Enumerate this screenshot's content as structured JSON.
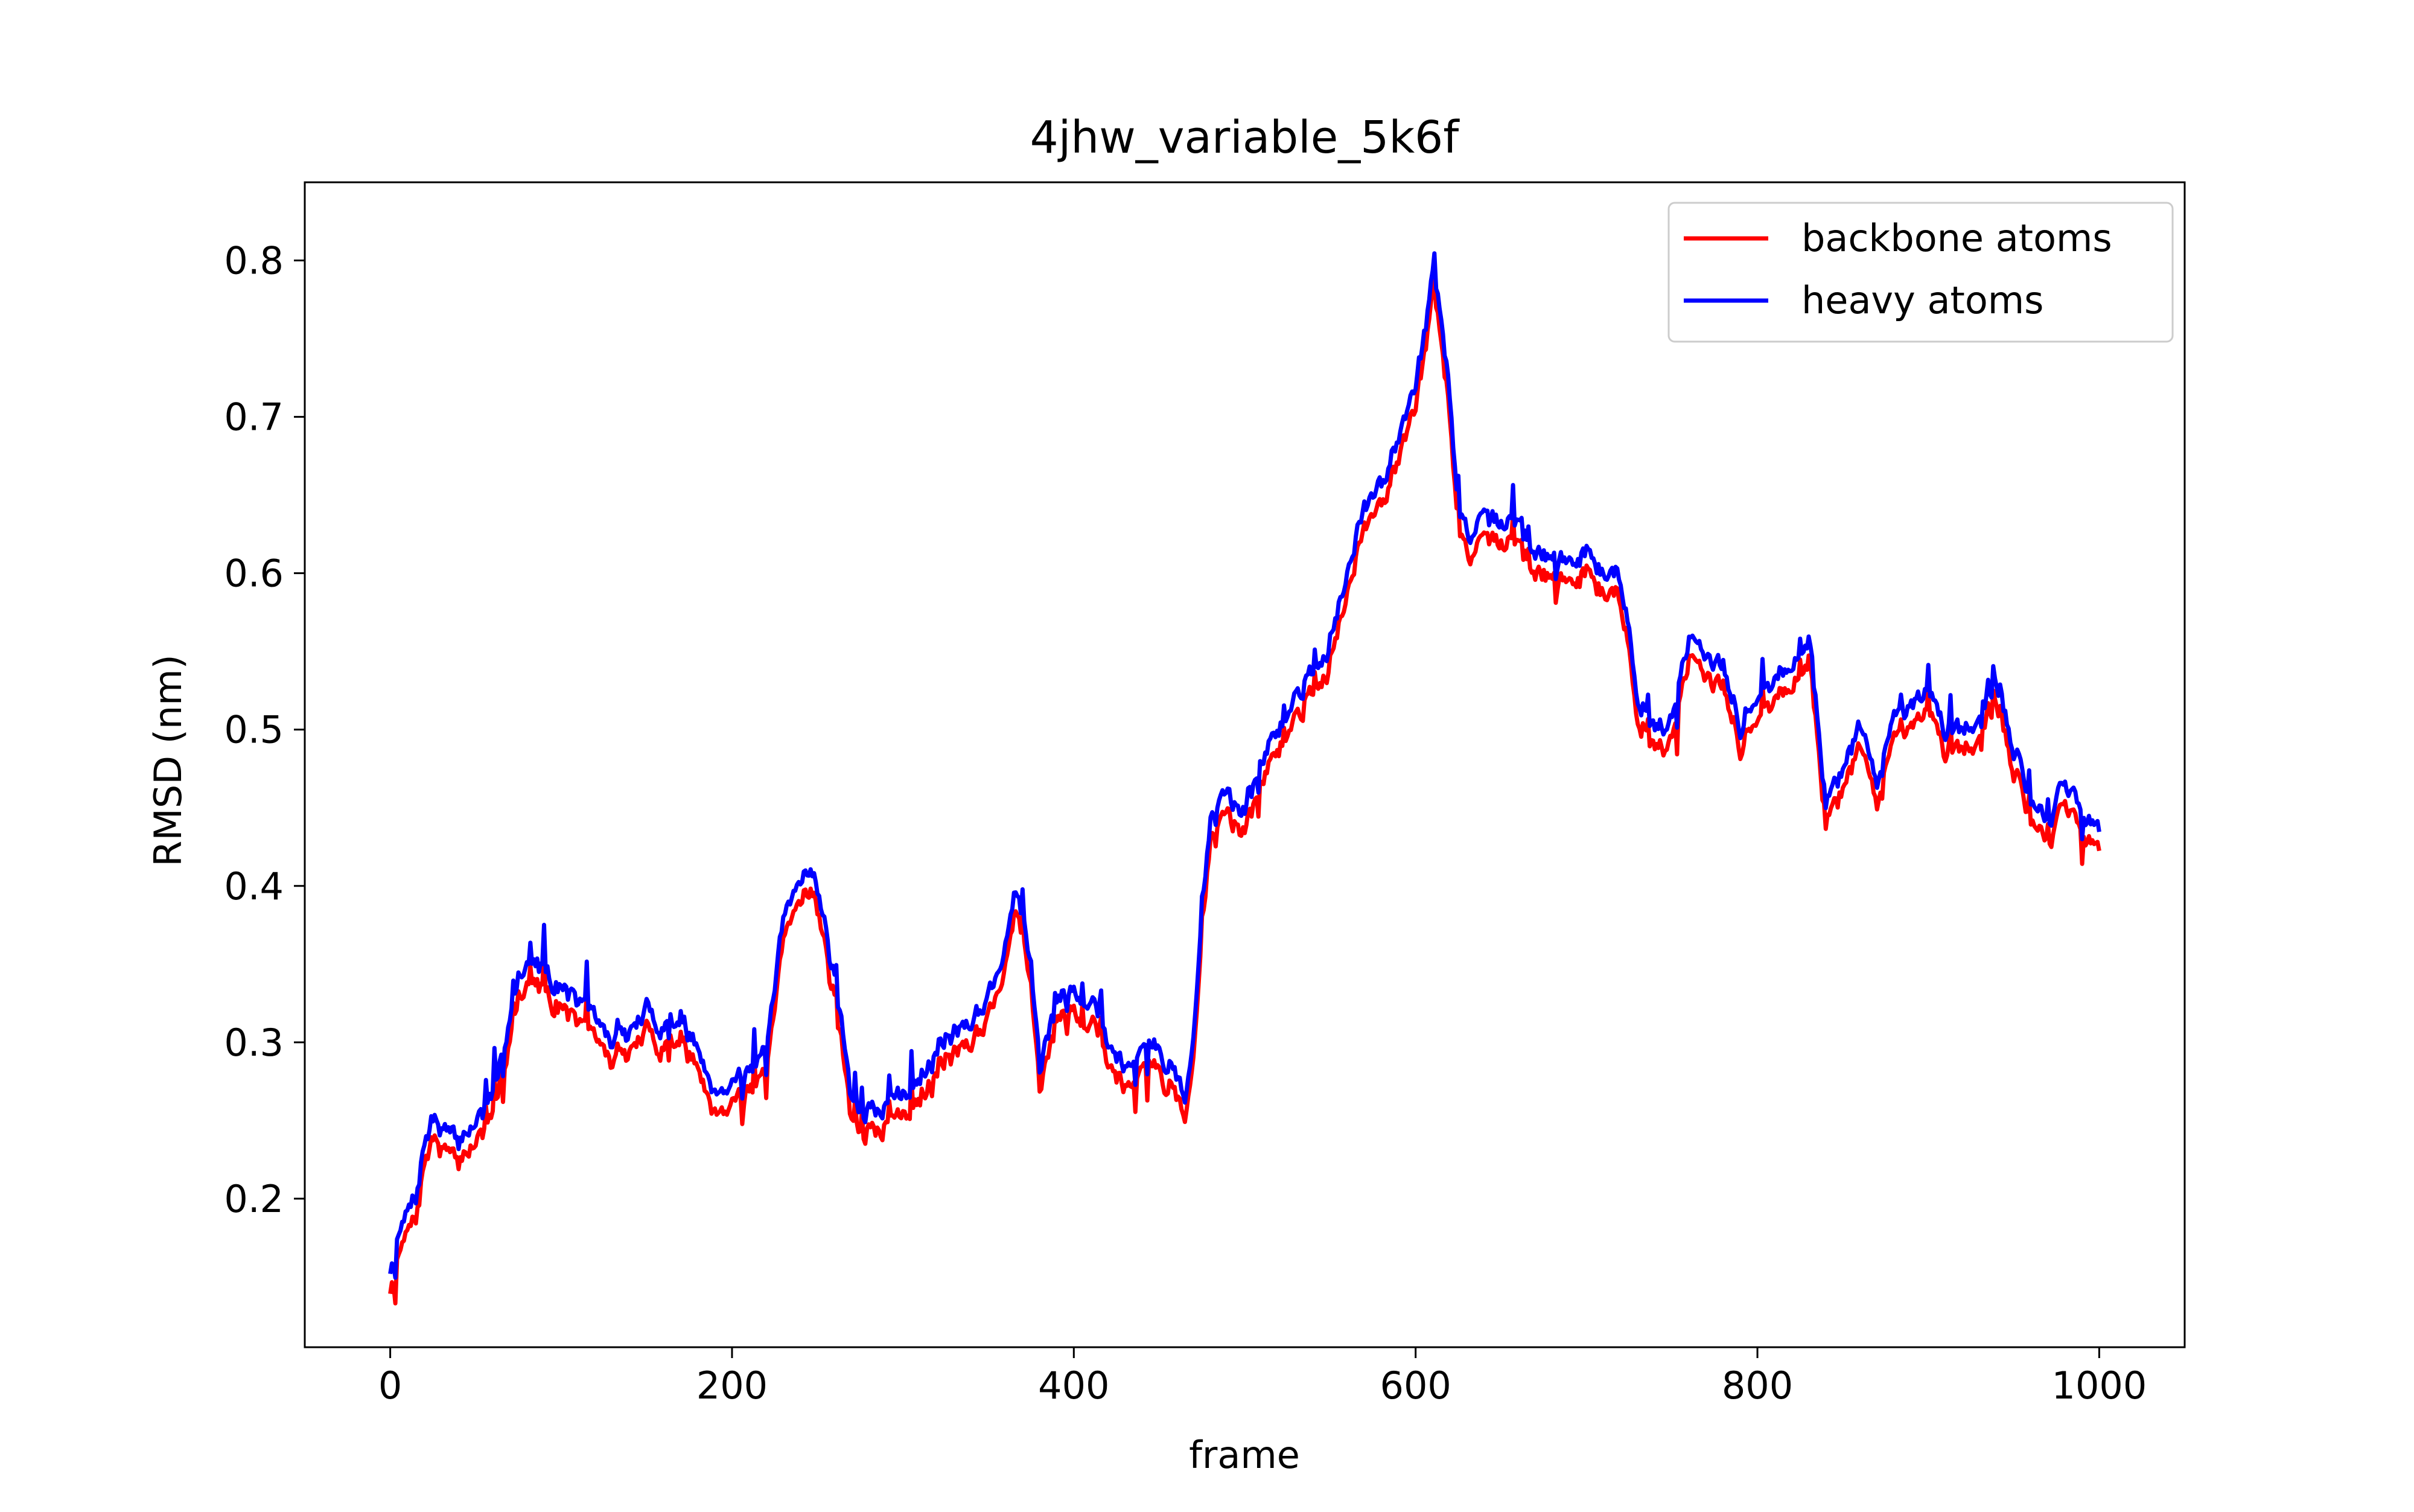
{
  "chart_data": {
    "type": "line",
    "title": "4jhw_variable_5k6f",
    "xlabel": "frame",
    "ylabel": "RMSD (nm)",
    "xlim": [
      -50,
      1050
    ],
    "ylim": [
      0.105,
      0.85
    ],
    "xticks": [
      0,
      200,
      400,
      600,
      800,
      1000
    ],
    "yticks": [
      0.2,
      0.3,
      0.4,
      0.5,
      0.6,
      0.7,
      0.8
    ],
    "xtick_labels": [
      "0",
      "200",
      "400",
      "600",
      "800",
      "1000"
    ],
    "ytick_labels": [
      "0.2",
      "0.3",
      "0.4",
      "0.5",
      "0.6",
      "0.7",
      "0.8"
    ],
    "grid": false,
    "legend_position": "top-right",
    "anchors": [
      [
        0,
        0.155
      ],
      [
        5,
        0.175
      ],
      [
        10,
        0.19
      ],
      [
        15,
        0.2
      ],
      [
        20,
        0.235
      ],
      [
        25,
        0.25
      ],
      [
        30,
        0.245
      ],
      [
        35,
        0.24
      ],
      [
        40,
        0.235
      ],
      [
        45,
        0.245
      ],
      [
        50,
        0.25
      ],
      [
        55,
        0.255
      ],
      [
        60,
        0.265
      ],
      [
        65,
        0.29
      ],
      [
        70,
        0.32
      ],
      [
        75,
        0.345
      ],
      [
        80,
        0.355
      ],
      [
        90,
        0.345
      ],
      [
        100,
        0.335
      ],
      [
        110,
        0.325
      ],
      [
        120,
        0.315
      ],
      [
        130,
        0.3
      ],
      [
        140,
        0.305
      ],
      [
        150,
        0.32
      ],
      [
        160,
        0.31
      ],
      [
        170,
        0.315
      ],
      [
        180,
        0.295
      ],
      [
        190,
        0.27
      ],
      [
        200,
        0.275
      ],
      [
        210,
        0.285
      ],
      [
        220,
        0.29
      ],
      [
        230,
        0.375
      ],
      [
        240,
        0.405
      ],
      [
        245,
        0.415
      ],
      [
        250,
        0.4
      ],
      [
        260,
        0.34
      ],
      [
        265,
        0.31
      ],
      [
        270,
        0.26
      ],
      [
        280,
        0.255
      ],
      [
        290,
        0.26
      ],
      [
        300,
        0.265
      ],
      [
        310,
        0.28
      ],
      [
        320,
        0.3
      ],
      [
        330,
        0.305
      ],
      [
        340,
        0.315
      ],
      [
        350,
        0.33
      ],
      [
        360,
        0.36
      ],
      [
        365,
        0.4
      ],
      [
        370,
        0.38
      ],
      [
        375,
        0.345
      ],
      [
        380,
        0.28
      ],
      [
        390,
        0.325
      ],
      [
        400,
        0.335
      ],
      [
        410,
        0.33
      ],
      [
        420,
        0.3
      ],
      [
        430,
        0.285
      ],
      [
        440,
        0.3
      ],
      [
        450,
        0.295
      ],
      [
        460,
        0.28
      ],
      [
        465,
        0.26
      ],
      [
        470,
        0.3
      ],
      [
        475,
        0.39
      ],
      [
        480,
        0.44
      ],
      [
        490,
        0.46
      ],
      [
        500,
        0.445
      ],
      [
        510,
        0.48
      ],
      [
        520,
        0.5
      ],
      [
        530,
        0.52
      ],
      [
        540,
        0.54
      ],
      [
        550,
        0.555
      ],
      [
        560,
        0.6
      ],
      [
        570,
        0.64
      ],
      [
        580,
        0.655
      ],
      [
        590,
        0.69
      ],
      [
        600,
        0.725
      ],
      [
        605,
        0.75
      ],
      [
        610,
        0.79
      ],
      [
        615,
        0.77
      ],
      [
        620,
        0.71
      ],
      [
        625,
        0.64
      ],
      [
        630,
        0.625
      ],
      [
        640,
        0.63
      ],
      [
        650,
        0.635
      ],
      [
        660,
        0.63
      ],
      [
        670,
        0.615
      ],
      [
        680,
        0.61
      ],
      [
        690,
        0.605
      ],
      [
        700,
        0.615
      ],
      [
        710,
        0.6
      ],
      [
        720,
        0.6
      ],
      [
        730,
        0.52
      ],
      [
        740,
        0.5
      ],
      [
        750,
        0.505
      ],
      [
        760,
        0.56
      ],
      [
        770,
        0.55
      ],
      [
        780,
        0.54
      ],
      [
        790,
        0.5
      ],
      [
        800,
        0.525
      ],
      [
        810,
        0.53
      ],
      [
        820,
        0.545
      ],
      [
        830,
        0.56
      ],
      [
        840,
        0.455
      ],
      [
        850,
        0.475
      ],
      [
        860,
        0.5
      ],
      [
        870,
        0.47
      ],
      [
        880,
        0.505
      ],
      [
        890,
        0.51
      ],
      [
        900,
        0.525
      ],
      [
        910,
        0.5
      ],
      [
        920,
        0.5
      ],
      [
        930,
        0.51
      ],
      [
        940,
        0.53
      ],
      [
        950,
        0.49
      ],
      [
        960,
        0.455
      ],
      [
        970,
        0.44
      ],
      [
        980,
        0.465
      ],
      [
        990,
        0.445
      ],
      [
        1000,
        0.435
      ]
    ],
    "noise_amplitude": 0.013,
    "series": [
      {
        "name": "backbone atoms",
        "color": "#ff0000",
        "offset": -0.012,
        "seed": 7
      },
      {
        "name": "heavy atoms",
        "color": "#0000ff",
        "offset": 0.0,
        "seed": 7
      }
    ]
  }
}
